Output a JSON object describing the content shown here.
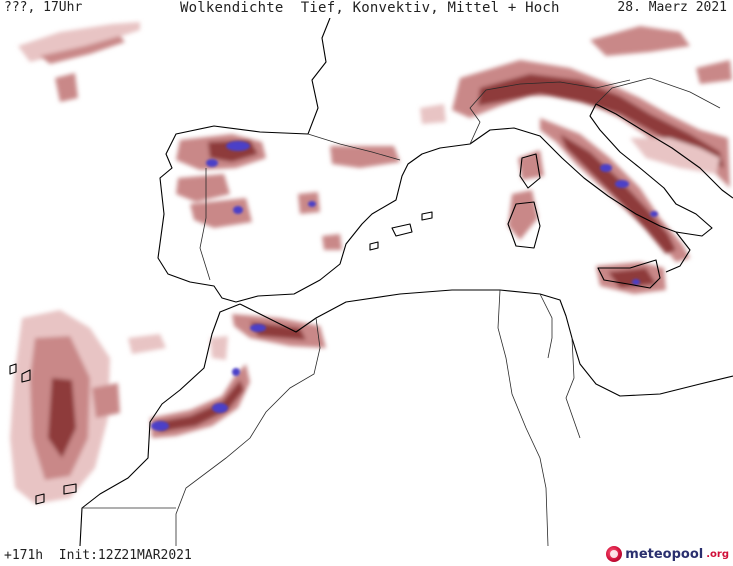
{
  "header": {
    "left": "???, 17Uhr",
    "title": "Wolkendichte  Tief, Konvektiv, Mittel + Hoch",
    "date": "28. Maerz 2021"
  },
  "footer": {
    "run": "+171h  Init:12Z21MAR2021",
    "logo_text": "meteopool",
    "logo_tld": ".org"
  },
  "colors": {
    "land_bg": "#ffffff",
    "coast": "#000000",
    "border": "#2a2a2a",
    "cloud_light": "#e8c4c4",
    "cloud_mid": "#c98888",
    "cloud_dark": "#8e3a3a",
    "cloud_max": "#4b40c8"
  },
  "map": {
    "region": "Western Mediterranean",
    "variable": "cloud density"
  }
}
